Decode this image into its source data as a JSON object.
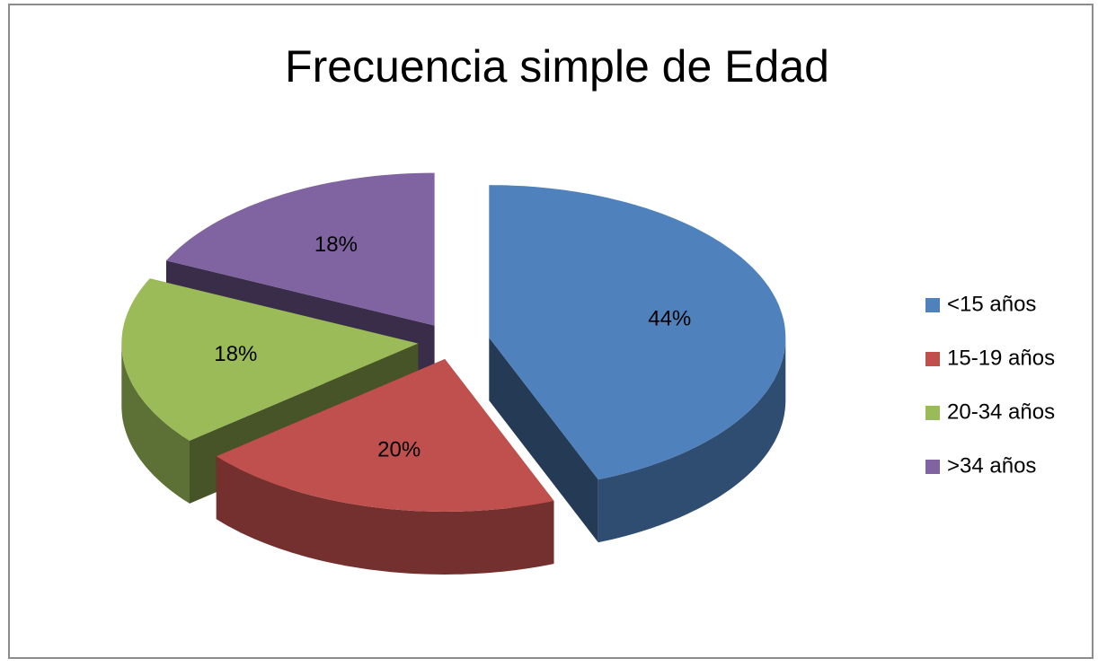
{
  "chart_data": {
    "type": "pie3d",
    "title": "Frecuencia simple de Edad",
    "categories": [
      "<15 años",
      "15-19 años",
      "20-34 años",
      ">34 años"
    ],
    "values": [
      44,
      20,
      18,
      18
    ],
    "value_labels": [
      "44%",
      "20%",
      "18%",
      "18%"
    ],
    "colors": [
      "#4f81bd",
      "#c0504d",
      "#9bbb59",
      "#8064a2"
    ],
    "legend": "right"
  }
}
